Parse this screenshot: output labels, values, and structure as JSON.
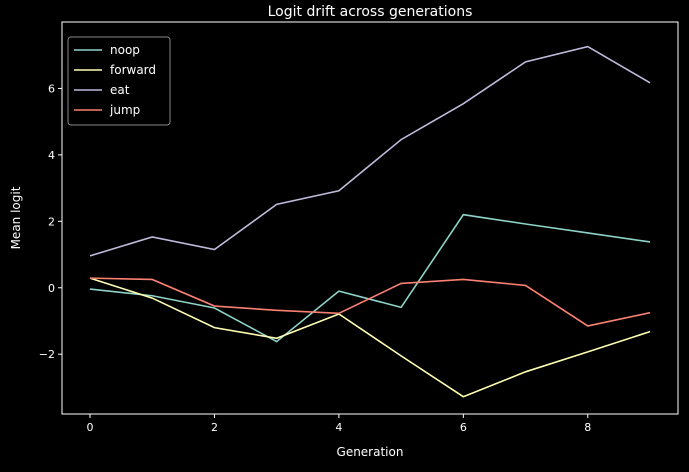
{
  "chart_data": {
    "type": "line",
    "title": "Logit drift across generations",
    "xlabel": "Generation",
    "ylabel": "Mean logit",
    "xlim": [
      -0.45,
      9.45
    ],
    "ylim": [
      -3.8,
      8.0
    ],
    "xticks": [
      0,
      2,
      4,
      6,
      8
    ],
    "yticks": [
      -2,
      0,
      2,
      4,
      6
    ],
    "grid": false,
    "legend_position": "top-left",
    "x": [
      0,
      1,
      2,
      3,
      4,
      5,
      6,
      7,
      8,
      9
    ],
    "series": [
      {
        "name": "noop",
        "color": "#8dd3c7",
        "values": [
          -0.04,
          -0.24,
          -0.61,
          -1.62,
          -0.1,
          -0.59,
          2.2,
          1.92,
          1.65,
          1.38
        ]
      },
      {
        "name": "forward",
        "color": "#ffffb3",
        "values": [
          0.29,
          -0.31,
          -1.2,
          -1.52,
          -0.79,
          -2.05,
          -3.28,
          -2.53,
          -1.93,
          -1.32
        ]
      },
      {
        "name": "eat",
        "color": "#bebada",
        "values": [
          0.96,
          1.53,
          1.15,
          2.51,
          2.92,
          4.46,
          5.54,
          6.8,
          7.26,
          6.17
        ]
      },
      {
        "name": "jump",
        "color": "#fa8072",
        "values": [
          0.29,
          0.25,
          -0.55,
          -0.68,
          -0.77,
          0.13,
          0.25,
          0.07,
          -1.15,
          -0.75
        ]
      }
    ]
  }
}
